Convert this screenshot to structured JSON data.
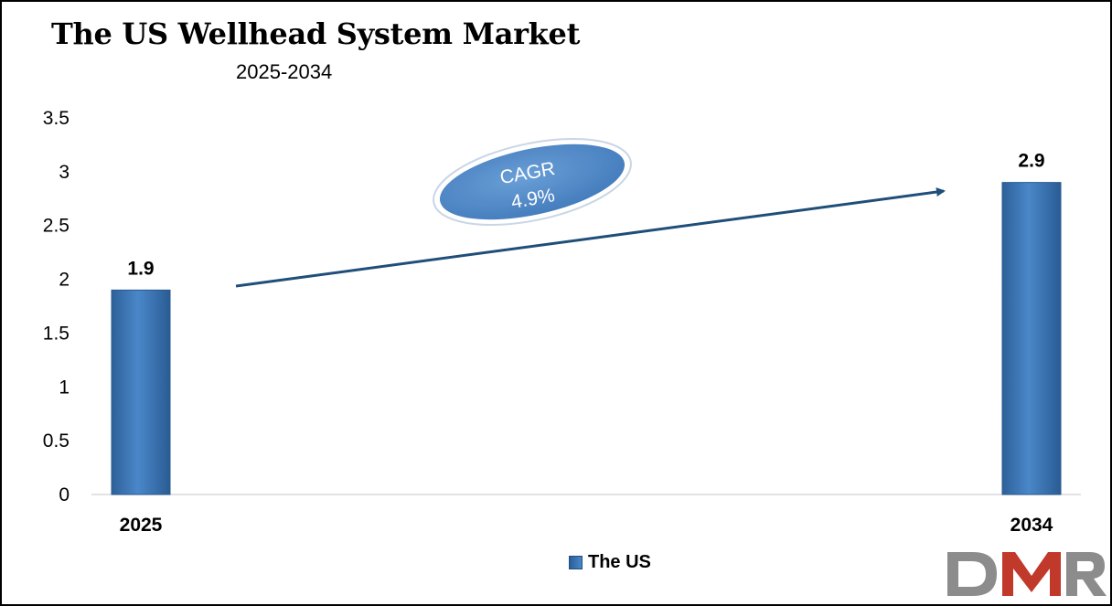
{
  "header": {
    "title": "The US Wellhead System Market",
    "subtitle": "2025-2034"
  },
  "chart_data": {
    "type": "bar",
    "categories": [
      "2025",
      "2034"
    ],
    "series": [
      {
        "name": "The US",
        "values": [
          1.9,
          2.9
        ]
      }
    ],
    "data_labels": [
      "1.9",
      "2.9"
    ],
    "yticks": [
      "0",
      "0.5",
      "1",
      "1.5",
      "2",
      "2.5",
      "3",
      "3.5"
    ],
    "ylim": [
      0,
      3.5
    ],
    "grid": false,
    "legend": "bottom-center",
    "bar_color": "#3a75b8",
    "annotation": {
      "line1": "CAGR",
      "line2": "4.9%",
      "color": "#4f86c6"
    }
  },
  "legend": {
    "label": "The US"
  },
  "logo": {
    "text": "DMR",
    "colors": [
      "#8c8c8c",
      "#c0392b"
    ]
  }
}
